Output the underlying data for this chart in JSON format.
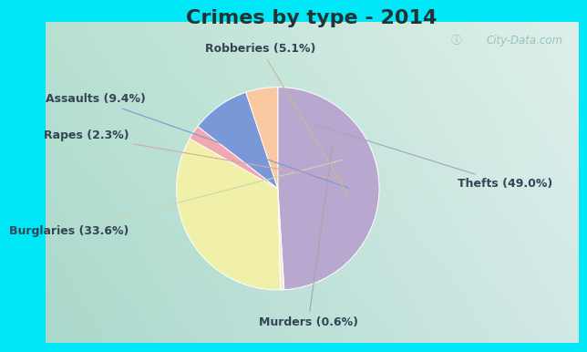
{
  "title": "Crimes by type - 2014",
  "slices": [
    {
      "label": "Thefts (49.0%)",
      "value": 49.0,
      "color": "#b8a8d0"
    },
    {
      "label": "Murders (0.6%)",
      "value": 0.6,
      "color": "#efefd0"
    },
    {
      "label": "Burglaries (33.6%)",
      "value": 33.6,
      "color": "#f0f0a8"
    },
    {
      "label": "Rapes (2.3%)",
      "value": 2.3,
      "color": "#f0a8b0"
    },
    {
      "label": "Assaults (9.4%)",
      "value": 9.4,
      "color": "#7898d8"
    },
    {
      "label": "Robberies (5.1%)",
      "value": 5.1,
      "color": "#f8c8a0"
    }
  ],
  "border_color": "#00e8f8",
  "border_thickness": 8,
  "title_fontsize": 16,
  "label_fontsize": 9,
  "label_color": "#334455",
  "title_color": "#223333",
  "watermark": "City-Data.com",
  "watermark_color": "#90b8b8",
  "line_color_thefts": "#a0a8b8",
  "line_color_murders": "#a0a8a0",
  "line_color_burglaries": "#c8d8b0",
  "line_color_rapes": "#d8a8a8",
  "line_color_assaults": "#7898d8",
  "line_color_robberies": "#c8b898"
}
